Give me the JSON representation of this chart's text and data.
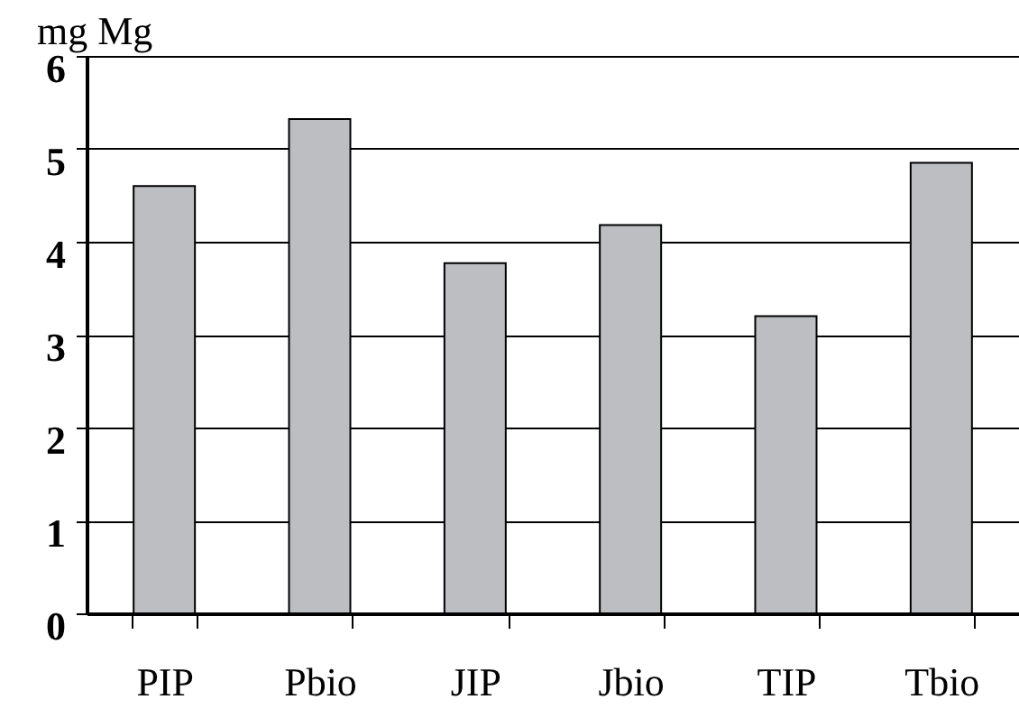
{
  "chart_data": {
    "type": "bar",
    "ylabel": "mg Mg",
    "categories": [
      "PIP",
      "Pbio",
      "JIP",
      "Jbio",
      "TIP",
      "Tbio"
    ],
    "values": [
      4.6,
      5.32,
      3.77,
      4.18,
      3.2,
      4.85
    ],
    "color": "#bdbec2",
    "ylim": [
      0,
      6
    ],
    "yticks": [
      0,
      1,
      2,
      3,
      4,
      5,
      6
    ],
    "grid": "y"
  }
}
